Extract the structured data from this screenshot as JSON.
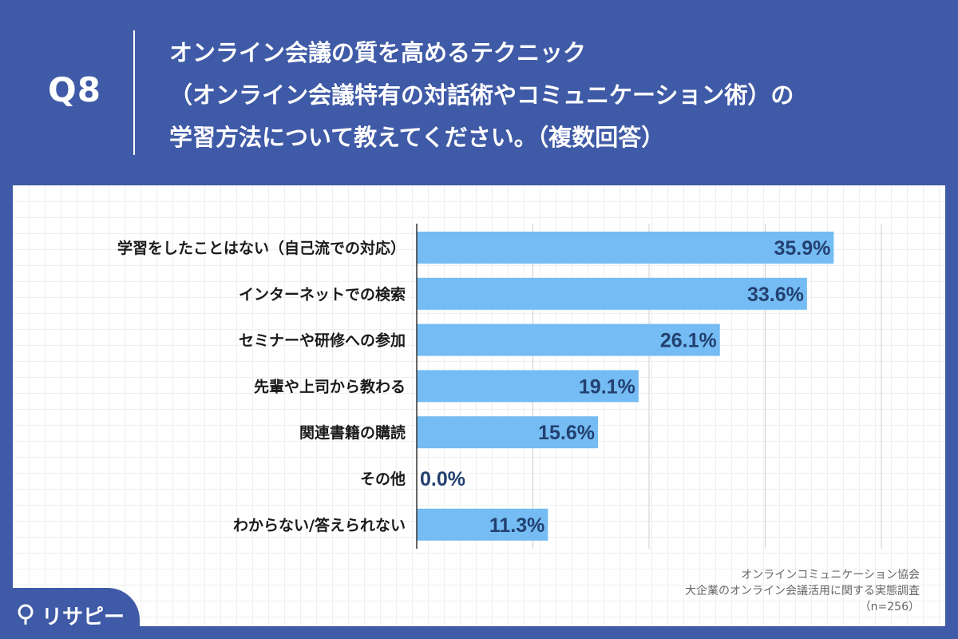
{
  "header": {
    "qnum": "Q8",
    "title_lines": [
      "オンライン会議の質を高めるテクニック",
      "（オンライン会議特有の対話術やコミュニケーション術）の",
      "学習方法について教えてください。（複数回答）"
    ]
  },
  "chart_data": {
    "type": "bar",
    "orientation": "horizontal",
    "categories": [
      "学習をしたことはない（自己流での対応）",
      "インターネットでの検索",
      "セミナーや研修への参加",
      "先輩や上司から教わる",
      "関連書籍の購読",
      "その他",
      "わからない/答えられない"
    ],
    "values": [
      35.9,
      33.6,
      26.1,
      19.1,
      15.6,
      0.0,
      11.3
    ],
    "value_labels": [
      "35.9%",
      "33.6%",
      "26.1%",
      "19.1%",
      "15.6%",
      "0.0%",
      "11.3%"
    ],
    "xlim": [
      0,
      40
    ],
    "gridlines": [
      10,
      20,
      30,
      40
    ],
    "bar_color": "#74bcf3",
    "label_color": "#234070"
  },
  "source": {
    "line1": "オンラインコミュニケーション協会",
    "line2": "大企業のオンライン会議活用に関する実態調査",
    "line3": "（n=256）"
  },
  "logo": {
    "text": "リサピー"
  },
  "colors": {
    "background": "#3f5aa6",
    "panel": "#ffffff"
  }
}
